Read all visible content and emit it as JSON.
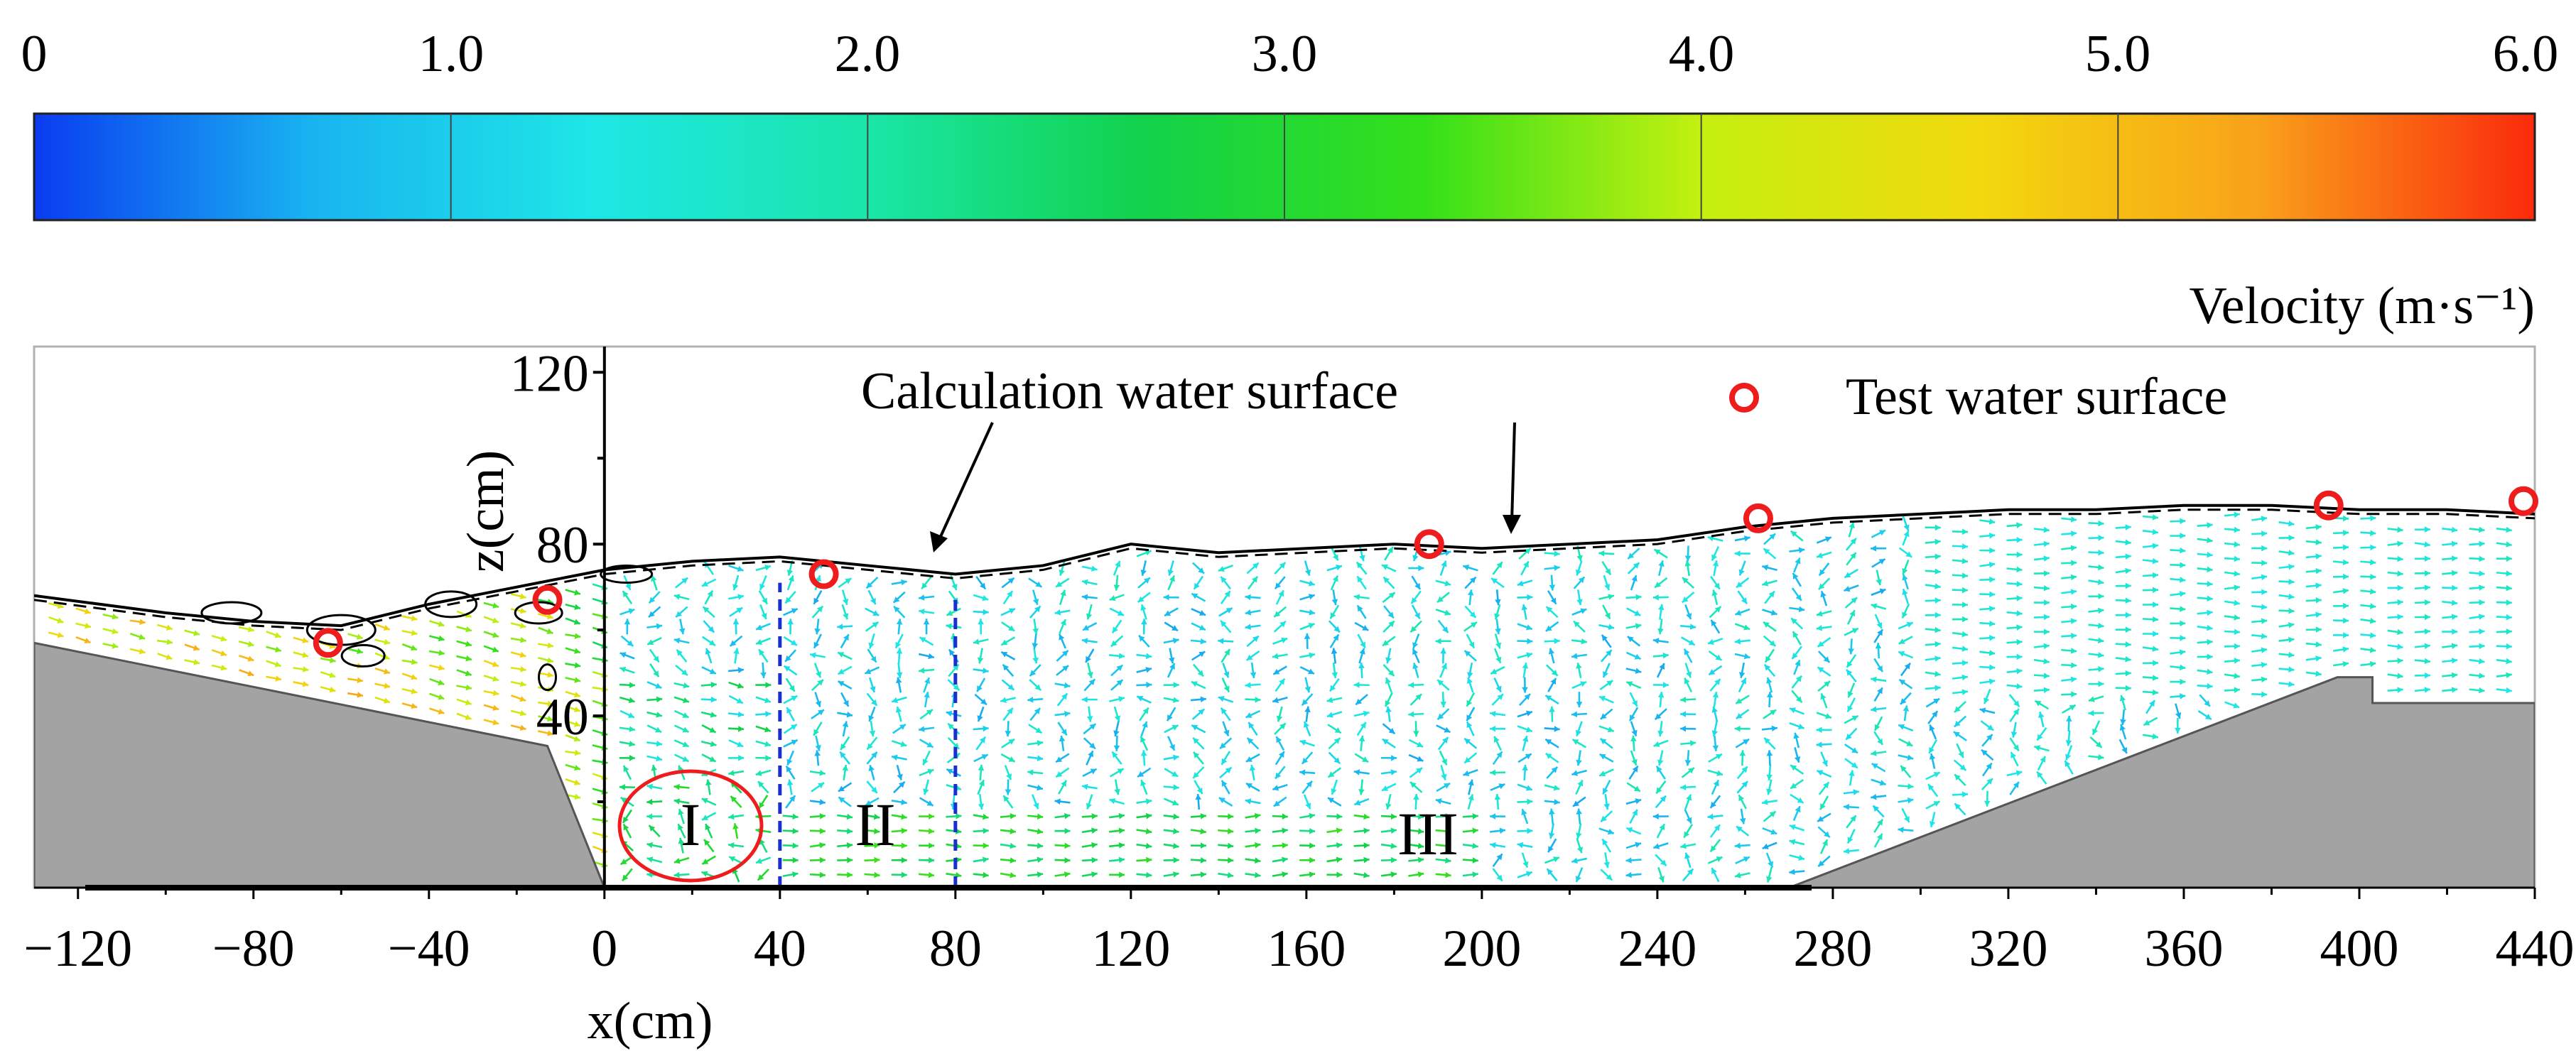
{
  "colorbar": {
    "ticks": [
      "0",
      "1.0",
      "2.0",
      "3.0",
      "4.0",
      "5.0",
      "6.0"
    ],
    "min": 0,
    "max": 6,
    "label": "Velocity (m·s⁻¹)",
    "stops": [
      "#0a3cf0",
      "#19b4f0",
      "#1ee6e6",
      "#1ae6a8",
      "#12d24a",
      "#34e01a",
      "#c4f010",
      "#f2d80e",
      "#f9a21a",
      "#fa2a0c"
    ]
  },
  "chart_data": {
    "type": "vector-field",
    "title": "",
    "xlabel": "x(cm)",
    "ylabel": "z(cm)",
    "xlim": [
      -130,
      440
    ],
    "ylim": [
      0,
      126
    ],
    "x_ticks": [
      "−120",
      "−80",
      "−40",
      "0",
      "40",
      "80",
      "120",
      "160",
      "200",
      "240",
      "280",
      "320",
      "360",
      "400",
      "440"
    ],
    "x_tick_values": [
      -120,
      -80,
      -40,
      0,
      40,
      80,
      120,
      160,
      200,
      240,
      280,
      320,
      360,
      400,
      440
    ],
    "y_ticks": [
      "40",
      "80",
      "120"
    ],
    "y_tick_values": [
      40,
      80,
      120
    ],
    "legend": {
      "marker_label": "Test water surface"
    },
    "annotations": {
      "calc_label": "Calculation water surface",
      "region_labels": [
        "I",
        "II",
        "III"
      ]
    },
    "region_boundaries_x": [
      40,
      80
    ],
    "test_water_surface": [
      {
        "x": -63,
        "z": 57
      },
      {
        "x": -13,
        "z": 67
      },
      {
        "x": 50,
        "z": 73
      },
      {
        "x": 188,
        "z": 80
      },
      {
        "x": 263,
        "z": 86
      },
      {
        "x": 393,
        "z": 89
      },
      {
        "x": 440,
        "z": 90
      }
    ],
    "calculation_water_surface": [
      [
        -130,
        68
      ],
      [
        -100,
        64
      ],
      [
        -80,
        62
      ],
      [
        -60,
        61
      ],
      [
        -40,
        66
      ],
      [
        -20,
        70
      ],
      [
        0,
        74
      ],
      [
        20,
        76
      ],
      [
        40,
        77
      ],
      [
        60,
        75
      ],
      [
        80,
        73
      ],
      [
        100,
        75
      ],
      [
        120,
        80
      ],
      [
        140,
        78
      ],
      [
        160,
        79
      ],
      [
        180,
        80
      ],
      [
        200,
        79
      ],
      [
        220,
        80
      ],
      [
        240,
        81
      ],
      [
        260,
        84
      ],
      [
        280,
        86
      ],
      [
        300,
        87
      ],
      [
        320,
        88
      ],
      [
        340,
        88
      ],
      [
        360,
        89
      ],
      [
        380,
        89
      ],
      [
        400,
        88
      ],
      [
        420,
        88
      ],
      [
        440,
        87
      ]
    ],
    "bed_left": [
      [
        -130,
        57
      ],
      [
        -13,
        33
      ],
      [
        0,
        0
      ]
    ],
    "bed_right": [
      [
        270,
        0
      ],
      [
        395,
        49
      ],
      [
        403,
        49
      ],
      [
        403,
        43
      ],
      [
        440,
        43
      ]
    ]
  }
}
